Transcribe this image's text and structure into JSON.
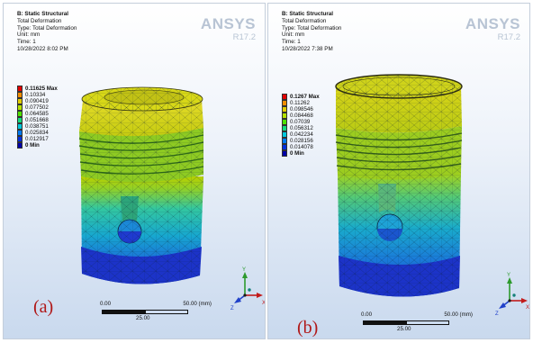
{
  "panel_a": {
    "info": [
      "B: Static Structural",
      "Total Deformation",
      "Type: Total Deformation",
      "Unit: mm",
      "Time: 1",
      "10/28/2022 8:02 PM"
    ],
    "brand": {
      "name": "ANSYS",
      "version": "R17.2"
    },
    "legend": {
      "max_label": "0.11625 Max",
      "values": [
        "0.10334",
        "0.090419",
        "0.077502",
        "0.064585",
        "0.051668",
        "0.038751",
        "0.025834",
        "0.012917"
      ],
      "min_label": "0 Min"
    },
    "scale": {
      "left": "0.00",
      "right": "50.00 (mm)",
      "mid": "25.00"
    },
    "tag": "(a)"
  },
  "panel_b": {
    "info": [
      "B: Static Structural",
      "Total Deformation",
      "Type: Total Deformation",
      "Unit: mm",
      "Time: 1",
      "10/28/2022 7:38 PM"
    ],
    "brand": {
      "name": "ANSYS",
      "version": "R17.2"
    },
    "legend": {
      "max_label": "0.1267 Max",
      "values": [
        "0.11262",
        "0.098546",
        "0.084468",
        "0.07039",
        "0.056312",
        "0.042234",
        "0.028156",
        "0.014078"
      ],
      "min_label": "0 Min"
    },
    "scale": {
      "left": "0.00",
      "right": "50.00 (mm)",
      "mid": "25.00"
    },
    "tag": "(b)"
  },
  "legend_colors": [
    "#e30000",
    "#f28d00",
    "#e3cd00",
    "#b4e100",
    "#4fe100",
    "#12dd7e",
    "#00c7dd",
    "#0079ef",
    "#002edc",
    "#0000a8"
  ],
  "triad": {
    "x": "X",
    "y": "Y",
    "z": "Z"
  }
}
